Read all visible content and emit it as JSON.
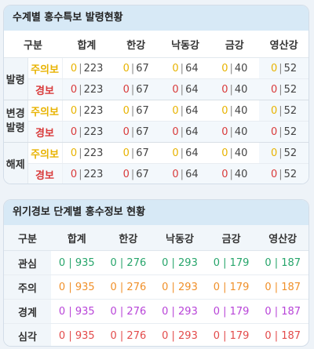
{
  "card1": {
    "title": "수계별 홍수특보 발령현황",
    "headers": {
      "type": "구분",
      "col1": "합계",
      "col2": "한강",
      "col3": "낙동강",
      "col4": "금강",
      "col5": "영산강"
    },
    "groups": [
      {
        "label": "발령",
        "rows": [
          {
            "level": "주의보",
            "values": [
              [
                "0",
                "223"
              ],
              [
                "0",
                "67"
              ],
              [
                "0",
                "64"
              ],
              [
                "0",
                "40"
              ],
              [
                "0",
                "52"
              ]
            ]
          },
          {
            "level": "경보",
            "values": [
              [
                "0",
                "223"
              ],
              [
                "0",
                "67"
              ],
              [
                "0",
                "64"
              ],
              [
                "0",
                "40"
              ],
              [
                "0",
                "52"
              ]
            ]
          }
        ]
      },
      {
        "label": "변경 발령",
        "rows": [
          {
            "level": "주의보",
            "values": [
              [
                "0",
                "223"
              ],
              [
                "0",
                "67"
              ],
              [
                "0",
                "64"
              ],
              [
                "0",
                "40"
              ],
              [
                "0",
                "52"
              ]
            ]
          },
          {
            "level": "경보",
            "values": [
              [
                "0",
                "223"
              ],
              [
                "0",
                "67"
              ],
              [
                "0",
                "64"
              ],
              [
                "0",
                "40"
              ],
              [
                "0",
                "52"
              ]
            ]
          }
        ]
      },
      {
        "label": "해제",
        "rows": [
          {
            "level": "주의보",
            "values": [
              [
                "0",
                "223"
              ],
              [
                "0",
                "67"
              ],
              [
                "0",
                "64"
              ],
              [
                "0",
                "40"
              ],
              [
                "0",
                "52"
              ]
            ]
          },
          {
            "level": "경보",
            "values": [
              [
                "0",
                "223"
              ],
              [
                "0",
                "67"
              ],
              [
                "0",
                "64"
              ],
              [
                "0",
                "40"
              ],
              [
                "0",
                "52"
              ]
            ]
          }
        ]
      }
    ],
    "separator": "|",
    "colors": {
      "advisory": "#e8b300",
      "warning": "#d93a3a"
    }
  },
  "card2": {
    "title": "위기경보 단계별 홍수정보 현황",
    "headers": {
      "type": "구분",
      "col1": "합계",
      "col2": "한강",
      "col3": "낙동강",
      "col4": "금강",
      "col5": "영산강"
    },
    "rows": [
      {
        "label": "관심",
        "values": [
          "0 | 935",
          "0 | 276",
          "0 | 293",
          "0 | 179",
          "0 | 187"
        ]
      },
      {
        "label": "주의",
        "values": [
          "0 | 935",
          "0 | 276",
          "0 | 293",
          "0 | 179",
          "0 | 187"
        ]
      },
      {
        "label": "경계",
        "values": [
          "0 | 935",
          "0 | 276",
          "0 | 293",
          "0 | 179",
          "0 | 187"
        ]
      },
      {
        "label": "심각",
        "values": [
          "0 | 935",
          "0 | 276",
          "0 | 293",
          "0 | 179",
          "0 | 187"
        ]
      }
    ],
    "colors": {
      "관심": "#27a56b",
      "주의": "#f0902a",
      "경계": "#b844d8",
      "심각": "#e34b4b"
    }
  }
}
